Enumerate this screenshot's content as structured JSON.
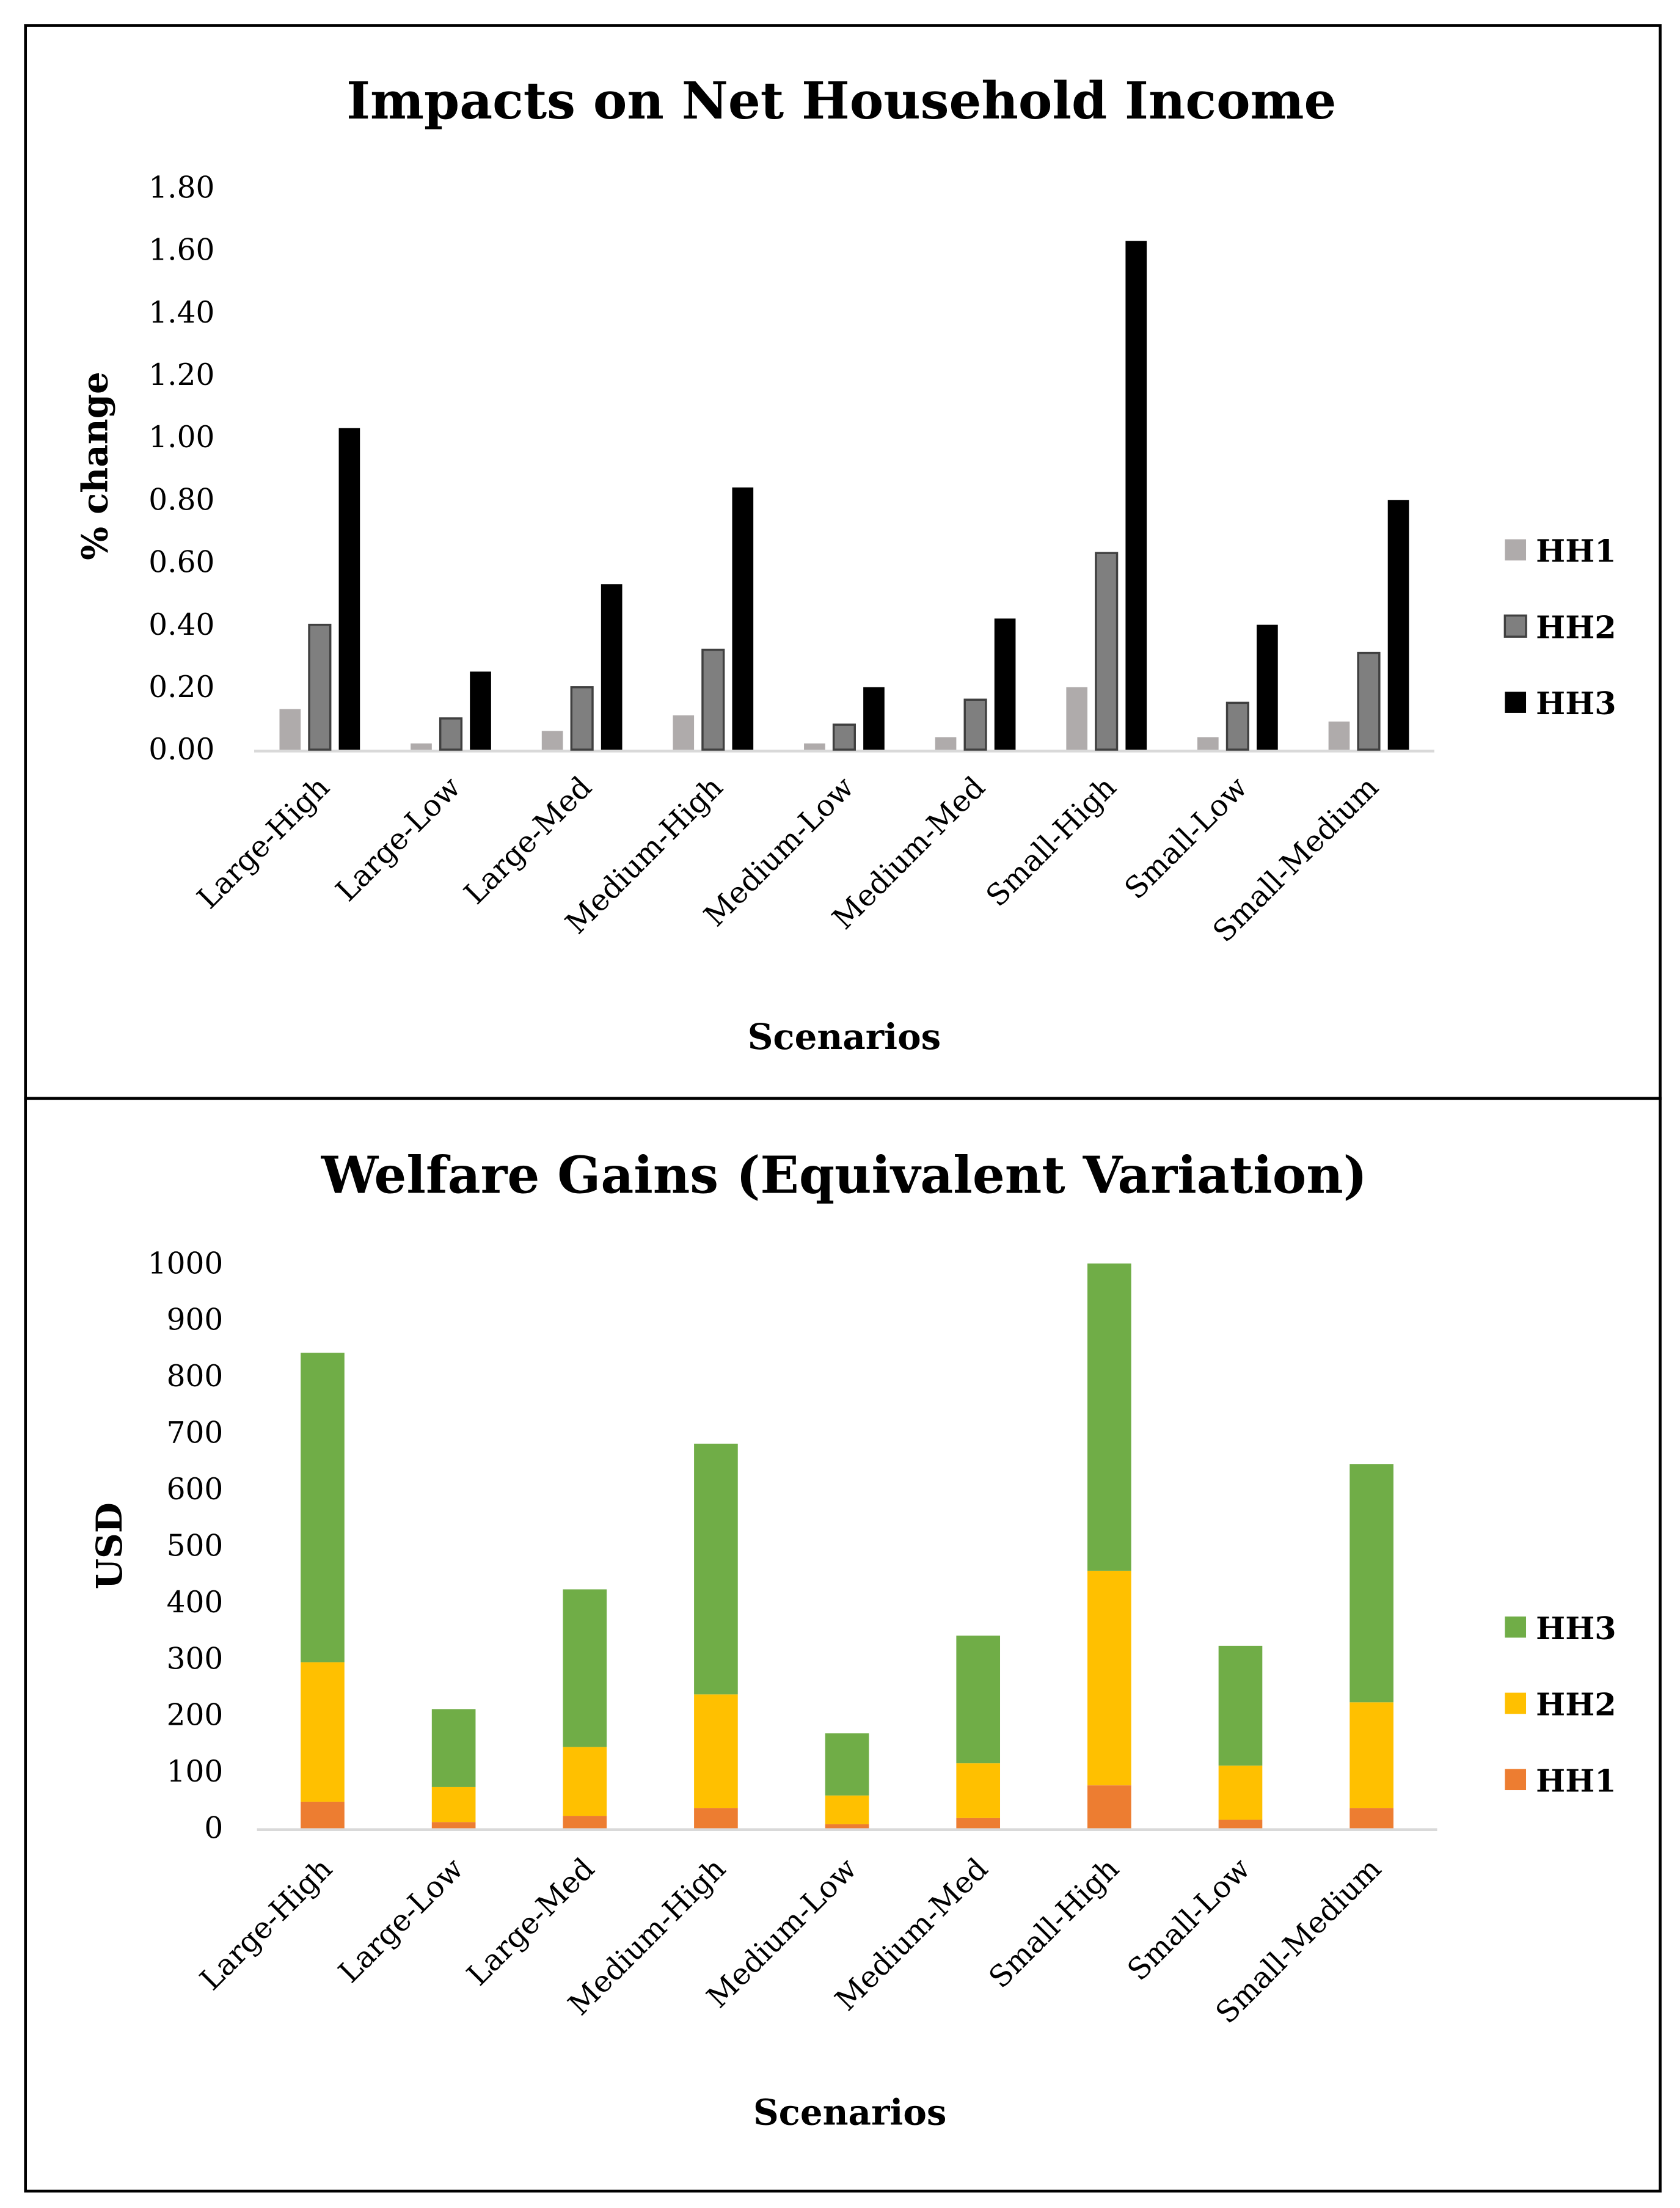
{
  "chart_data": [
    {
      "type": "bar",
      "title": "Impacts on Net Household Income",
      "xlabel": "Scenarios",
      "ylabel": "% change",
      "ylim": [
        0,
        1.8
      ],
      "yticks": [
        "0.00",
        "0.20",
        "0.40",
        "0.60",
        "0.80",
        "1.00",
        "1.20",
        "1.40",
        "1.60",
        "1.80"
      ],
      "grid": false,
      "legend_position": "right",
      "categories": [
        "Large-High",
        "Large-Low",
        "Large-Med",
        "Medium-High",
        "Medium-Low",
        "Medium-Med",
        "Small-High",
        "Small-Low",
        "Small-Medium"
      ],
      "series": [
        {
          "name": "HH1",
          "color": "#afabab",
          "values": [
            0.13,
            0.02,
            0.06,
            0.11,
            0.02,
            0.04,
            0.2,
            0.04,
            0.09
          ]
        },
        {
          "name": "HH2",
          "color": "#7f7f7f",
          "values": [
            0.4,
            0.1,
            0.2,
            0.32,
            0.08,
            0.16,
            0.63,
            0.15,
            0.31
          ]
        },
        {
          "name": "HH3",
          "color": "#000000",
          "values": [
            1.03,
            0.25,
            0.53,
            0.84,
            0.2,
            0.42,
            1.63,
            0.4,
            0.8
          ]
        }
      ]
    },
    {
      "type": "bar",
      "stacked": true,
      "title": "Welfare Gains (Equivalent Variation)",
      "xlabel": "Scenarios",
      "ylabel": "USD",
      "ylim": [
        0,
        1000
      ],
      "yticks": [
        "0",
        "100",
        "200",
        "300",
        "400",
        "500",
        "600",
        "700",
        "800",
        "900",
        "1000"
      ],
      "grid": false,
      "legend_position": "right",
      "categories": [
        "Large-High",
        "Large-Low",
        "Large-Med",
        "Medium-High",
        "Medium-Low",
        "Medium-Med",
        "Small-High",
        "Small-Low",
        "Small-Medium"
      ],
      "series": [
        {
          "name": "HH1",
          "color": "#ed7d31",
          "values": [
            47,
            11,
            22,
            36,
            7,
            18,
            76,
            15,
            36
          ]
        },
        {
          "name": "HH2",
          "color": "#ffc000",
          "values": [
            247,
            62,
            122,
            201,
            51,
            97,
            380,
            96,
            187
          ]
        },
        {
          "name": "HH3",
          "color": "#70ad47",
          "values": [
            548,
            138,
            279,
            444,
            110,
            226,
            544,
            212,
            422
          ]
        }
      ]
    }
  ]
}
